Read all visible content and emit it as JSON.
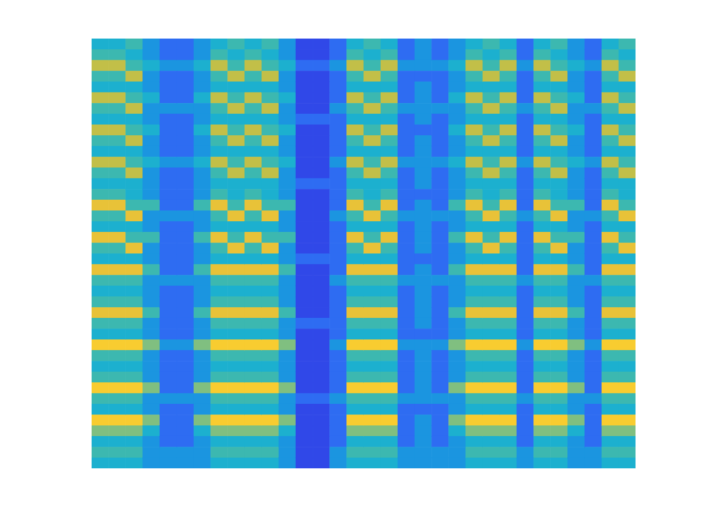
{
  "chart_data": {
    "type": "heatmap",
    "grid": false,
    "tick_labels": false,
    "xlim": [
      0,
      32
    ],
    "ylim": [
      0,
      40
    ],
    "clim": [
      0,
      9
    ],
    "cells_by_column": [
      [
        4,
        5,
        7,
        5,
        4,
        7,
        5,
        4,
        7,
        5,
        4,
        7,
        5,
        4,
        5,
        8,
        5,
        4,
        8,
        5,
        4,
        8,
        5,
        4,
        5,
        8,
        5,
        4,
        9,
        5,
        4,
        5,
        9,
        5,
        4,
        9,
        6,
        4,
        5,
        4
      ],
      [
        4,
        5,
        7,
        5,
        4,
        7,
        5,
        4,
        7,
        5,
        4,
        7,
        5,
        4,
        5,
        8,
        5,
        4,
        8,
        5,
        4,
        8,
        5,
        4,
        5,
        8,
        5,
        4,
        9,
        5,
        4,
        5,
        9,
        5,
        4,
        9,
        6,
        4,
        5,
        4
      ],
      [
        5,
        4,
        5,
        7,
        4,
        5,
        7,
        4,
        5,
        7,
        4,
        5,
        7,
        4,
        4,
        5,
        8,
        4,
        5,
        8,
        4,
        8,
        5,
        4,
        5,
        8,
        5,
        4,
        9,
        5,
        4,
        5,
        9,
        5,
        4,
        9,
        6,
        4,
        5,
        4
      ],
      [
        3,
        3,
        4,
        3,
        3,
        4,
        3,
        3,
        4,
        3,
        3,
        4,
        3,
        3,
        3,
        5,
        3,
        3,
        5,
        3,
        3,
        5,
        3,
        3,
        3,
        5,
        3,
        3,
        6,
        3,
        3,
        3,
        6,
        3,
        3,
        6,
        4,
        3,
        3,
        3
      ],
      [
        2,
        2,
        3,
        2,
        2,
        2,
        3,
        2,
        2,
        2,
        2,
        3,
        2,
        2,
        2,
        2,
        3,
        2,
        2,
        2,
        2,
        2,
        3,
        2,
        2,
        2,
        2,
        2,
        3,
        2,
        2,
        2,
        2,
        3,
        2,
        2,
        2,
        2,
        3,
        3
      ],
      [
        2,
        2,
        3,
        2,
        2,
        2,
        3,
        2,
        2,
        2,
        2,
        3,
        2,
        2,
        2,
        2,
        3,
        2,
        2,
        2,
        2,
        2,
        3,
        2,
        2,
        2,
        2,
        2,
        3,
        2,
        2,
        2,
        2,
        3,
        2,
        2,
        2,
        2,
        3,
        3
      ],
      [
        3,
        3,
        4,
        3,
        3,
        4,
        3,
        3,
        4,
        3,
        3,
        4,
        3,
        3,
        3,
        5,
        3,
        3,
        5,
        3,
        3,
        5,
        3,
        3,
        3,
        5,
        3,
        3,
        6,
        3,
        3,
        3,
        6,
        3,
        3,
        6,
        4,
        3,
        3,
        3
      ],
      [
        4,
        5,
        7,
        5,
        4,
        7,
        5,
        4,
        7,
        5,
        4,
        7,
        5,
        4,
        5,
        8,
        5,
        4,
        8,
        5,
        4,
        8,
        5,
        4,
        5,
        8,
        5,
        4,
        9,
        5,
        4,
        5,
        9,
        5,
        4,
        9,
        6,
        4,
        5,
        4
      ],
      [
        5,
        4,
        5,
        7,
        4,
        5,
        7,
        4,
        5,
        7,
        4,
        5,
        7,
        4,
        4,
        5,
        8,
        4,
        5,
        8,
        4,
        8,
        5,
        4,
        5,
        8,
        5,
        4,
        9,
        5,
        4,
        5,
        9,
        5,
        4,
        9,
        6,
        4,
        5,
        4
      ],
      [
        4,
        5,
        7,
        5,
        4,
        7,
        5,
        4,
        7,
        5,
        4,
        7,
        5,
        4,
        5,
        8,
        5,
        4,
        8,
        5,
        4,
        8,
        5,
        4,
        5,
        8,
        5,
        4,
        9,
        5,
        4,
        5,
        9,
        5,
        4,
        9,
        6,
        4,
        5,
        4
      ],
      [
        5,
        4,
        5,
        7,
        4,
        5,
        7,
        4,
        5,
        7,
        4,
        5,
        7,
        4,
        4,
        5,
        8,
        4,
        5,
        8,
        4,
        8,
        5,
        4,
        5,
        8,
        5,
        4,
        9,
        5,
        4,
        5,
        9,
        5,
        4,
        9,
        6,
        4,
        5,
        4
      ],
      [
        3,
        3,
        4,
        3,
        3,
        4,
        3,
        3,
        4,
        3,
        3,
        4,
        3,
        3,
        3,
        5,
        3,
        3,
        5,
        3,
        3,
        5,
        3,
        3,
        3,
        5,
        3,
        3,
        6,
        3,
        3,
        3,
        6,
        3,
        3,
        6,
        4,
        3,
        3,
        3
      ],
      [
        1,
        1,
        2,
        1,
        1,
        1,
        1,
        2,
        1,
        1,
        1,
        1,
        1,
        2,
        1,
        1,
        1,
        1,
        1,
        1,
        2,
        1,
        1,
        1,
        1,
        1,
        2,
        1,
        1,
        1,
        1,
        1,
        1,
        2,
        1,
        1,
        1,
        1,
        1,
        1
      ],
      [
        1,
        1,
        2,
        1,
        1,
        1,
        1,
        2,
        1,
        1,
        1,
        1,
        1,
        2,
        1,
        1,
        1,
        1,
        1,
        1,
        2,
        1,
        1,
        1,
        1,
        1,
        2,
        1,
        1,
        1,
        1,
        1,
        1,
        2,
        1,
        1,
        1,
        1,
        1,
        1
      ],
      [
        2,
        2,
        3,
        2,
        2,
        2,
        3,
        2,
        2,
        2,
        2,
        3,
        2,
        2,
        2,
        2,
        3,
        2,
        2,
        2,
        2,
        2,
        3,
        2,
        2,
        2,
        2,
        2,
        3,
        2,
        2,
        2,
        2,
        3,
        2,
        2,
        2,
        2,
        3,
        3
      ],
      [
        4,
        5,
        7,
        5,
        4,
        7,
        5,
        4,
        7,
        5,
        4,
        7,
        5,
        4,
        5,
        8,
        5,
        4,
        8,
        5,
        4,
        8,
        5,
        4,
        5,
        8,
        5,
        4,
        9,
        5,
        4,
        5,
        9,
        5,
        4,
        9,
        6,
        4,
        5,
        4
      ],
      [
        5,
        4,
        5,
        7,
        4,
        5,
        7,
        4,
        5,
        7,
        4,
        5,
        7,
        4,
        4,
        5,
        8,
        4,
        5,
        8,
        4,
        8,
        5,
        4,
        5,
        8,
        5,
        4,
        9,
        5,
        4,
        5,
        9,
        5,
        4,
        9,
        6,
        4,
        5,
        4
      ],
      [
        4,
        5,
        7,
        5,
        4,
        7,
        5,
        4,
        7,
        5,
        4,
        7,
        5,
        4,
        5,
        8,
        5,
        4,
        8,
        5,
        4,
        8,
        5,
        4,
        5,
        8,
        5,
        4,
        9,
        5,
        4,
        5,
        9,
        5,
        4,
        9,
        6,
        4,
        5,
        4
      ],
      [
        2,
        2,
        3,
        2,
        2,
        2,
        3,
        2,
        2,
        2,
        2,
        3,
        2,
        2,
        2,
        2,
        3,
        2,
        2,
        2,
        2,
        2,
        3,
        2,
        2,
        2,
        2,
        2,
        3,
        2,
        2,
        2,
        2,
        3,
        2,
        2,
        2,
        2,
        3,
        3
      ],
      [
        3,
        3,
        3,
        2,
        3,
        3,
        3,
        3,
        2,
        3,
        3,
        3,
        3,
        3,
        2,
        3,
        3,
        3,
        3,
        3,
        2,
        3,
        3,
        3,
        3,
        3,
        3,
        2,
        3,
        3,
        3,
        3,
        3,
        3,
        2,
        3,
        3,
        3,
        3,
        3
      ],
      [
        2,
        2,
        3,
        2,
        2,
        2,
        3,
        2,
        2,
        2,
        2,
        3,
        2,
        2,
        2,
        2,
        3,
        2,
        2,
        2,
        2,
        2,
        3,
        2,
        2,
        2,
        2,
        2,
        3,
        2,
        2,
        2,
        2,
        3,
        2,
        2,
        2,
        2,
        3,
        3
      ],
      [
        3,
        3,
        4,
        3,
        3,
        4,
        3,
        3,
        4,
        3,
        3,
        4,
        3,
        3,
        3,
        5,
        3,
        3,
        5,
        3,
        3,
        5,
        3,
        3,
        3,
        5,
        3,
        3,
        6,
        3,
        3,
        3,
        6,
        3,
        3,
        6,
        4,
        3,
        3,
        3
      ],
      [
        4,
        5,
        7,
        5,
        4,
        7,
        5,
        4,
        7,
        5,
        4,
        7,
        5,
        4,
        5,
        8,
        5,
        4,
        8,
        5,
        4,
        8,
        5,
        4,
        5,
        8,
        5,
        4,
        9,
        5,
        4,
        5,
        9,
        5,
        4,
        9,
        6,
        4,
        5,
        4
      ],
      [
        5,
        4,
        5,
        7,
        4,
        5,
        7,
        4,
        5,
        7,
        4,
        5,
        7,
        4,
        4,
        5,
        8,
        4,
        5,
        8,
        4,
        8,
        5,
        4,
        5,
        8,
        5,
        4,
        9,
        5,
        4,
        5,
        9,
        5,
        4,
        9,
        6,
        4,
        5,
        4
      ],
      [
        4,
        5,
        7,
        5,
        4,
        7,
        5,
        4,
        7,
        5,
        4,
        7,
        5,
        4,
        5,
        8,
        5,
        4,
        8,
        5,
        4,
        8,
        5,
        4,
        5,
        8,
        5,
        4,
        9,
        5,
        4,
        5,
        9,
        5,
        4,
        9,
        6,
        4,
        5,
        4
      ],
      [
        2,
        2,
        3,
        2,
        2,
        2,
        3,
        2,
        2,
        2,
        2,
        3,
        2,
        2,
        2,
        2,
        3,
        2,
        2,
        2,
        2,
        2,
        3,
        2,
        2,
        2,
        2,
        2,
        3,
        2,
        2,
        2,
        2,
        3,
        2,
        2,
        2,
        2,
        3,
        3
      ],
      [
        4,
        5,
        7,
        5,
        4,
        7,
        5,
        4,
        7,
        5,
        4,
        7,
        5,
        4,
        5,
        8,
        5,
        4,
        8,
        5,
        4,
        8,
        5,
        4,
        5,
        8,
        5,
        4,
        9,
        5,
        4,
        5,
        9,
        5,
        4,
        9,
        6,
        4,
        5,
        4
      ],
      [
        5,
        4,
        5,
        7,
        4,
        5,
        7,
        4,
        5,
        7,
        4,
        5,
        7,
        4,
        4,
        5,
        8,
        4,
        5,
        8,
        4,
        8,
        5,
        4,
        5,
        8,
        5,
        4,
        9,
        5,
        4,
        5,
        9,
        5,
        4,
        9,
        6,
        4,
        5,
        4
      ],
      [
        3,
        3,
        4,
        3,
        3,
        4,
        3,
        3,
        4,
        3,
        3,
        4,
        3,
        3,
        3,
        5,
        3,
        3,
        5,
        3,
        3,
        5,
        3,
        3,
        3,
        5,
        3,
        3,
        6,
        3,
        3,
        3,
        6,
        3,
        3,
        6,
        4,
        3,
        3,
        3
      ],
      [
        2,
        2,
        3,
        2,
        2,
        2,
        3,
        2,
        2,
        2,
        2,
        3,
        2,
        2,
        2,
        2,
        3,
        2,
        2,
        2,
        2,
        2,
        3,
        2,
        2,
        2,
        2,
        2,
        3,
        2,
        2,
        2,
        2,
        3,
        2,
        2,
        2,
        2,
        3,
        3
      ],
      [
        4,
        5,
        7,
        5,
        4,
        7,
        5,
        4,
        7,
        5,
        4,
        7,
        5,
        4,
        5,
        8,
        5,
        4,
        8,
        5,
        4,
        8,
        5,
        4,
        5,
        8,
        5,
        4,
        9,
        5,
        4,
        5,
        9,
        5,
        4,
        9,
        6,
        4,
        5,
        4
      ],
      [
        5,
        4,
        5,
        7,
        4,
        5,
        7,
        4,
        5,
        7,
        4,
        5,
        7,
        4,
        4,
        5,
        8,
        4,
        5,
        8,
        4,
        8,
        5,
        4,
        5,
        8,
        5,
        4,
        9,
        5,
        4,
        5,
        9,
        5,
        4,
        9,
        6,
        4,
        5,
        4
      ]
    ]
  }
}
